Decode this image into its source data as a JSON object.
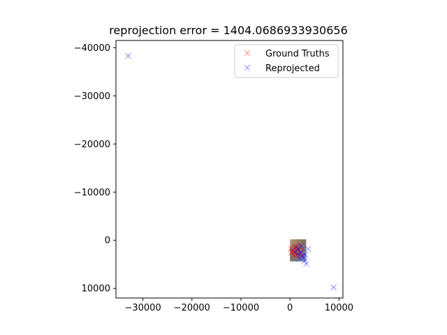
{
  "chart_data": {
    "type": "scatter",
    "title": "reprojection error = 1404.0686933930656",
    "xlabel": "",
    "ylabel": "",
    "xlim": [
      -35500,
      10800
    ],
    "ylim": [
      12000,
      -41500
    ],
    "y_inverted": true,
    "grid": false,
    "legend_position": "upper right",
    "xticks": [
      -30000,
      -20000,
      -10000,
      0,
      10000
    ],
    "xtick_labels": [
      "−30000",
      "−20000",
      "−10000",
      "0",
      "10000"
    ],
    "yticks": [
      -40000,
      -30000,
      -20000,
      -10000,
      0,
      10000
    ],
    "ytick_labels": [
      "−40000",
      "−30000",
      "−20000",
      "−10000",
      "0",
      "10000"
    ],
    "series": [
      {
        "name": "Ground Truths",
        "color": "#ff0000",
        "marker": "x",
        "points": [
          [
            200,
            1800
          ],
          [
            400,
            2300
          ],
          [
            600,
            2000
          ],
          [
            900,
            1600
          ],
          [
            1100,
            2500
          ],
          [
            1400,
            2900
          ],
          [
            1600,
            2200
          ],
          [
            1900,
            1400
          ],
          [
            2100,
            2700
          ],
          [
            2400,
            3100
          ],
          [
            2600,
            1900
          ],
          [
            300,
            2600
          ],
          [
            800,
            3000
          ],
          [
            1200,
            1200
          ],
          [
            1700,
            3400
          ]
        ]
      },
      {
        "name": "Reprojected",
        "color": "#0000ff",
        "marker": "x",
        "points": [
          [
            -33000,
            -38300
          ],
          [
            8900,
            9800
          ],
          [
            3300,
            4900
          ],
          [
            3000,
            4300
          ],
          [
            3700,
            1800
          ],
          [
            2800,
            3700
          ],
          [
            2200,
            2600
          ],
          [
            1700,
            1900
          ],
          [
            2500,
            3300
          ],
          [
            1300,
            1500
          ],
          [
            900,
            2400
          ],
          [
            2000,
            3900
          ],
          [
            3100,
            3000
          ],
          [
            1600,
            2900
          ],
          [
            2300,
            1200
          ]
        ]
      }
    ],
    "inset_image": {
      "description": "small photo overlay near origin",
      "extent_x": [
        0,
        3300
      ],
      "extent_y": [
        -200,
        4400
      ]
    }
  }
}
